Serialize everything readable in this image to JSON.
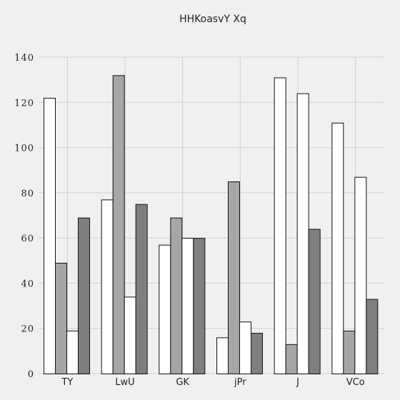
{
  "chart_data": {
    "type": "bar",
    "title": "HHKoasvY Xq",
    "xlabel": "",
    "ylabel": "",
    "categories": [
      "TY",
      "LwU",
      "GK",
      "jPr",
      "J",
      "VCo"
    ],
    "series": [
      {
        "values": [
          122,
          77,
          57,
          16,
          131,
          111
        ],
        "color": "#ffffff"
      },
      {
        "values": [
          49,
          132,
          69,
          85,
          13,
          19
        ],
        "color": "#a6a6a6"
      },
      {
        "values": [
          19,
          34,
          60,
          23,
          124,
          87
        ],
        "color": "#ffffff"
      },
      {
        "values": [
          69,
          75,
          60,
          18,
          64,
          33
        ],
        "color": "#7f7f7f"
      }
    ],
    "ylim": [
      0,
      140
    ],
    "yticks": [
      0,
      20,
      40,
      60,
      80,
      100,
      120,
      140
    ],
    "grid": true,
    "legend": "none"
  }
}
